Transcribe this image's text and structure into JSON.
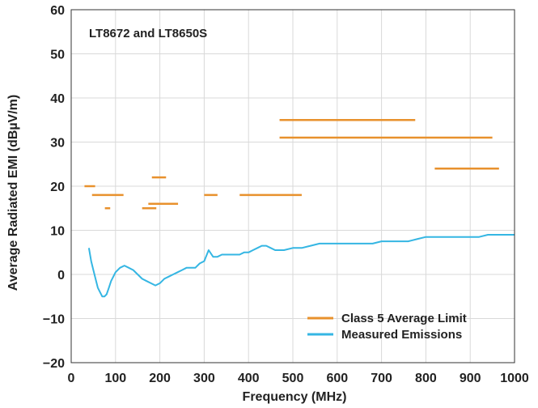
{
  "chart_data": {
    "type": "line",
    "title": "",
    "annotation": "LT8672 and LT8650S",
    "xlabel": "Frequency (MHz)",
    "ylabel": "Average Radiated EMI (dBµV/m)",
    "xlim": [
      0,
      1000
    ],
    "ylim": [
      -20,
      60
    ],
    "xticks": [
      0,
      100,
      200,
      300,
      400,
      500,
      600,
      700,
      800,
      900,
      1000
    ],
    "yticks": [
      60,
      50,
      40,
      30,
      20,
      10,
      0,
      -10,
      -20
    ],
    "ytick_labels": [
      "60",
      "50",
      "40",
      "30",
      "20",
      "10",
      "0",
      "−10",
      "−20"
    ],
    "grid": true,
    "legend_position": "bottom-right",
    "colors": {
      "limit": "#e8912d",
      "emissions": "#35b6e3",
      "grid": "#d9d9d9",
      "axis": "#333333"
    },
    "series": [
      {
        "name": "Class 5 Average Limit",
        "kind": "segments",
        "segments": [
          {
            "x": [
              30,
              54
            ],
            "y": 20
          },
          {
            "x": [
              47,
              118
            ],
            "y": 18
          },
          {
            "x": [
              76,
              88
            ],
            "y": 15
          },
          {
            "x": [
              160,
              192
            ],
            "y": 15
          },
          {
            "x": [
              174,
              241
            ],
            "y": 16
          },
          {
            "x": [
              182,
              214
            ],
            "y": 22
          },
          {
            "x": [
              300,
              330
            ],
            "y": 18
          },
          {
            "x": [
              380,
              520
            ],
            "y": 18
          },
          {
            "x": [
              470,
              776
            ],
            "y": 35
          },
          {
            "x": [
              470,
              950
            ],
            "y": 31
          },
          {
            "x": [
              820,
              965
            ],
            "y": 24
          }
        ]
      },
      {
        "name": "Measured Emissions",
        "kind": "line",
        "x": [
          40,
          45,
          50,
          55,
          60,
          65,
          70,
          75,
          80,
          85,
          90,
          95,
          100,
          110,
          120,
          130,
          140,
          150,
          160,
          170,
          180,
          190,
          200,
          210,
          220,
          230,
          240,
          250,
          260,
          270,
          280,
          290,
          300,
          310,
          320,
          330,
          340,
          350,
          360,
          370,
          380,
          390,
          400,
          410,
          420,
          430,
          440,
          450,
          460,
          470,
          480,
          500,
          520,
          540,
          560,
          580,
          600,
          620,
          640,
          660,
          680,
          700,
          720,
          740,
          760,
          780,
          800,
          820,
          840,
          860,
          880,
          900,
          920,
          940,
          960,
          980,
          1000
        ],
        "y": [
          6,
          3,
          1,
          -1,
          -3,
          -4,
          -5,
          -5,
          -4.5,
          -3,
          -1.5,
          -0.5,
          0.5,
          1.5,
          2,
          1.5,
          1,
          0,
          -1,
          -1.5,
          -2,
          -2.5,
          -2,
          -1,
          -0.5,
          0,
          0.5,
          1,
          1.5,
          1.5,
          1.5,
          2.5,
          3,
          5.5,
          4,
          4,
          4.5,
          4.5,
          4.5,
          4.5,
          4.5,
          5,
          5,
          5.5,
          6,
          6.5,
          6.5,
          6,
          5.5,
          5.5,
          5.5,
          6,
          6,
          6.5,
          7,
          7,
          7,
          7,
          7,
          7,
          7,
          7.5,
          7.5,
          7.5,
          7.5,
          8,
          8.5,
          8.5,
          8.5,
          8.5,
          8.5,
          8.5,
          8.5,
          9,
          9,
          9,
          9
        ]
      }
    ]
  }
}
